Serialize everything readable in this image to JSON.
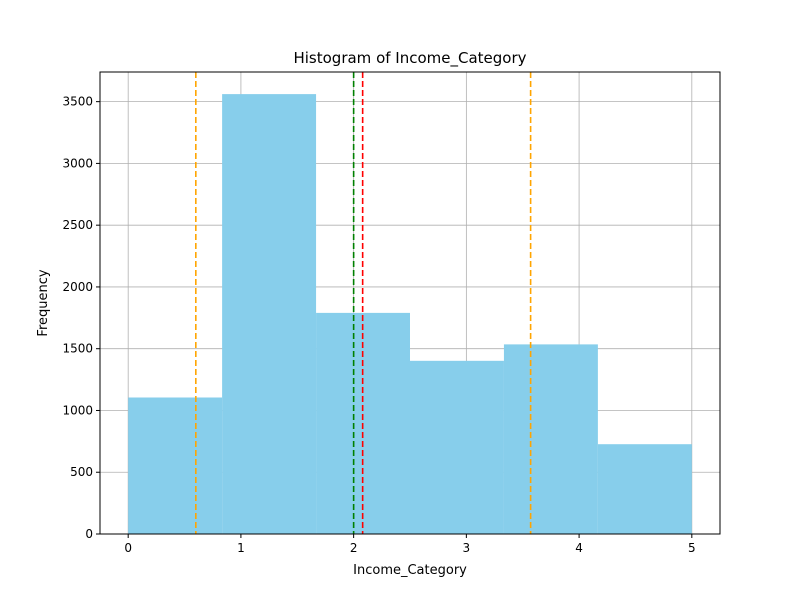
{
  "chart_data": {
    "type": "bar",
    "title": "Histogram of Income_Category",
    "xlabel": "Income_Category",
    "ylabel": "Frequency",
    "bins": [
      {
        "x0": 0.0,
        "x1": 0.8333,
        "value": 1105
      },
      {
        "x0": 0.8333,
        "x1": 1.6667,
        "value": 3561
      },
      {
        "x0": 1.6667,
        "x1": 2.5,
        "value": 1790
      },
      {
        "x0": 2.5,
        "x1": 3.3333,
        "value": 1402
      },
      {
        "x0": 3.3333,
        "x1": 4.1667,
        "value": 1535
      },
      {
        "x0": 4.1667,
        "x1": 5.0,
        "value": 727
      }
    ],
    "xlim": [
      -0.25,
      5.25
    ],
    "ylim": [
      0,
      3740
    ],
    "xticks": [
      "0",
      "1",
      "2",
      "3",
      "4",
      "5"
    ],
    "yticks": [
      "0",
      "500",
      "1000",
      "1500",
      "2000",
      "2500",
      "3000",
      "3500"
    ],
    "grid": true,
    "bar_color": "#87ceeb",
    "vlines": [
      {
        "x": 2.08,
        "color": "#ff0000",
        "style": "dashed"
      },
      {
        "x": 2.0,
        "color": "#008000",
        "style": "dashed"
      },
      {
        "x": 0.6,
        "color": "#ffa500",
        "style": "dashed"
      },
      {
        "x": 3.57,
        "color": "#ffa500",
        "style": "dashed"
      }
    ]
  }
}
